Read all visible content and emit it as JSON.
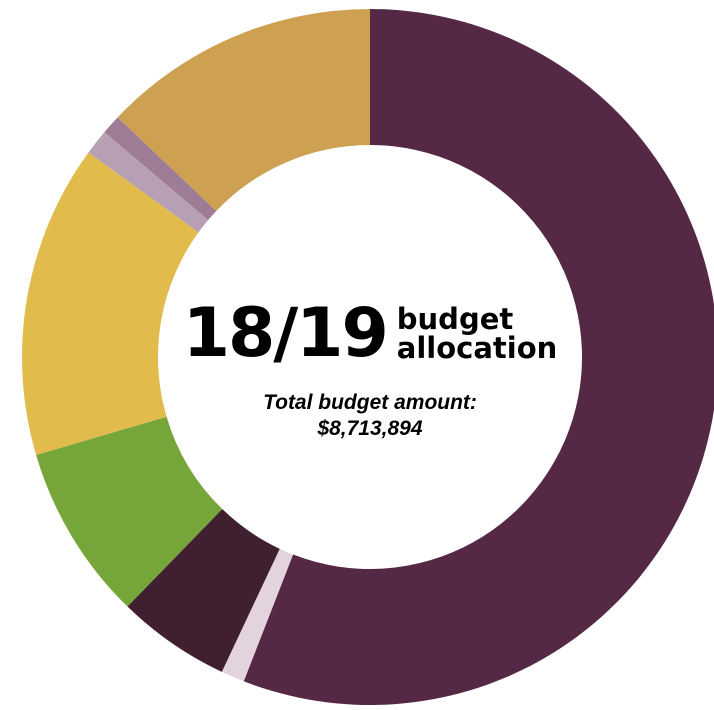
{
  "chart_data": {
    "type": "pie",
    "variant": "donut",
    "categories": [
      "",
      "",
      "",
      "",
      "",
      "",
      "",
      ""
    ],
    "values": [
      61.5,
      1.2,
      5.8,
      9.0,
      16.0,
      1.3,
      1.0,
      14.2
    ],
    "colors": [
      "#552946",
      "#e2d3dd",
      "#3f1f30",
      "#76a63a",
      "#e2bb4d",
      "#b8a0b4",
      "#9e7c96",
      "#cea152"
    ],
    "start": "top, clockwise"
  },
  "center": {
    "headline": "18/19",
    "sub_line1": "budget",
    "sub_line2": "allocation",
    "total_label": "Total budget amount:",
    "total_value": "$8,713,894"
  }
}
